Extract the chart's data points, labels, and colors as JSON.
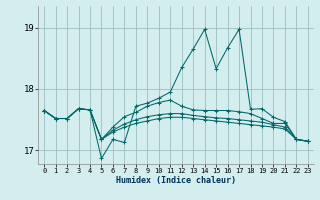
{
  "xlabel": "Humidex (Indice chaleur)",
  "background_color": "#d4edee",
  "grid_color": "#9bbfbf",
  "line_color": "#006868",
  "xlim": [
    -0.5,
    23.5
  ],
  "ylim": [
    16.78,
    19.35
  ],
  "yticks": [
    17,
    18,
    19
  ],
  "xticks": [
    0,
    1,
    2,
    3,
    4,
    5,
    6,
    7,
    8,
    9,
    10,
    11,
    12,
    13,
    14,
    15,
    16,
    17,
    18,
    19,
    20,
    21,
    22,
    23
  ],
  "series": [
    [
      17.65,
      17.52,
      17.52,
      17.68,
      17.66,
      16.87,
      17.18,
      17.13,
      17.72,
      17.77,
      17.85,
      17.95,
      18.35,
      18.65,
      18.97,
      18.33,
      18.67,
      18.97,
      17.67,
      17.68,
      17.54,
      17.47,
      17.18,
      17.15
    ],
    [
      17.65,
      17.52,
      17.52,
      17.68,
      17.66,
      17.18,
      17.38,
      17.55,
      17.62,
      17.72,
      17.78,
      17.82,
      17.72,
      17.66,
      17.65,
      17.65,
      17.65,
      17.63,
      17.6,
      17.52,
      17.44,
      17.44,
      17.18,
      17.15
    ],
    [
      17.65,
      17.52,
      17.52,
      17.68,
      17.66,
      17.18,
      17.33,
      17.43,
      17.5,
      17.55,
      17.58,
      17.6,
      17.6,
      17.57,
      17.55,
      17.53,
      17.52,
      17.5,
      17.48,
      17.46,
      17.42,
      17.38,
      17.18,
      17.15
    ],
    [
      17.65,
      17.52,
      17.52,
      17.68,
      17.66,
      17.18,
      17.3,
      17.38,
      17.44,
      17.48,
      17.52,
      17.54,
      17.54,
      17.52,
      17.5,
      17.48,
      17.46,
      17.44,
      17.42,
      17.4,
      17.38,
      17.35,
      17.18,
      17.15
    ]
  ]
}
